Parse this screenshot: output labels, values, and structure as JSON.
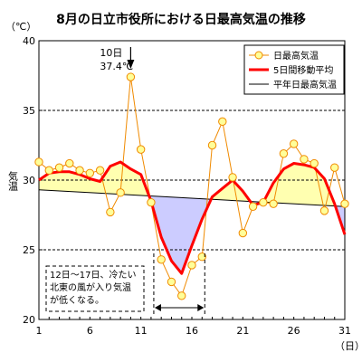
{
  "chart_data": {
    "type": "line",
    "title": "8月の日立市役所における日最高気温の推移",
    "unit_label": "（℃）",
    "ylabel": "気温",
    "xunit": "（日）",
    "ylim": [
      20,
      40
    ],
    "yticks": [
      20,
      25,
      30,
      35,
      40
    ],
    "xlim": [
      1,
      31
    ],
    "xticks": [
      1,
      6,
      11,
      16,
      21,
      26,
      31
    ],
    "grid": "dashed at 25, 30, 35",
    "legend_position": "top-right",
    "series": [
      {
        "name": "日最高気温",
        "color": "#f08a00",
        "marker_fill": "#ffff99",
        "x": [
          1,
          2,
          3,
          4,
          5,
          6,
          7,
          8,
          9,
          10,
          11,
          12,
          13,
          14,
          15,
          16,
          17,
          18,
          19,
          20,
          21,
          22,
          23,
          24,
          25,
          26,
          27,
          28,
          29,
          30,
          31
        ],
        "values": [
          31.3,
          30.7,
          30.9,
          31.2,
          30.7,
          30.5,
          30.7,
          27.7,
          29.1,
          37.4,
          32.2,
          28.4,
          24.3,
          22.7,
          21.7,
          23.9,
          24.5,
          32.5,
          34.2,
          30.2,
          26.2,
          28.1,
          28.4,
          28.3,
          31.9,
          32.6,
          31.5,
          31.2,
          27.8,
          30.9,
          28.3
        ]
      },
      {
        "name": "5日間移動平均",
        "color": "#ff0000",
        "x": [
          1,
          2,
          3,
          4,
          5,
          6,
          7,
          8,
          9,
          10,
          11,
          12,
          13,
          14,
          15,
          16,
          17,
          18,
          19,
          20,
          21,
          22,
          23,
          24,
          25,
          26,
          27,
          28,
          29,
          30,
          31
        ],
        "values": [
          30.0,
          30.5,
          30.6,
          30.6,
          30.4,
          30.1,
          29.9,
          31.0,
          31.3,
          30.8,
          30.4,
          28.5,
          25.9,
          24.2,
          23.3,
          25.3,
          27.2,
          28.8,
          29.4,
          30.0,
          29.2,
          28.2,
          28.4,
          29.8,
          30.8,
          31.2,
          31.1,
          30.9,
          30.1,
          28.3,
          26.1
        ]
      },
      {
        "name": "平年日最高気温",
        "color": "#000000",
        "x": [
          1,
          31
        ],
        "values": [
          29.3,
          28.1
        ]
      }
    ],
    "annotations": [
      {
        "lines": [
          "10日",
          "37.4℃"
        ],
        "at_day": 10
      },
      {
        "lines": [
          "12日～17日、冷たい",
          "北東の風が入り気温",
          "が低くなる。"
        ],
        "range_days": [
          12,
          17
        ]
      }
    ]
  }
}
